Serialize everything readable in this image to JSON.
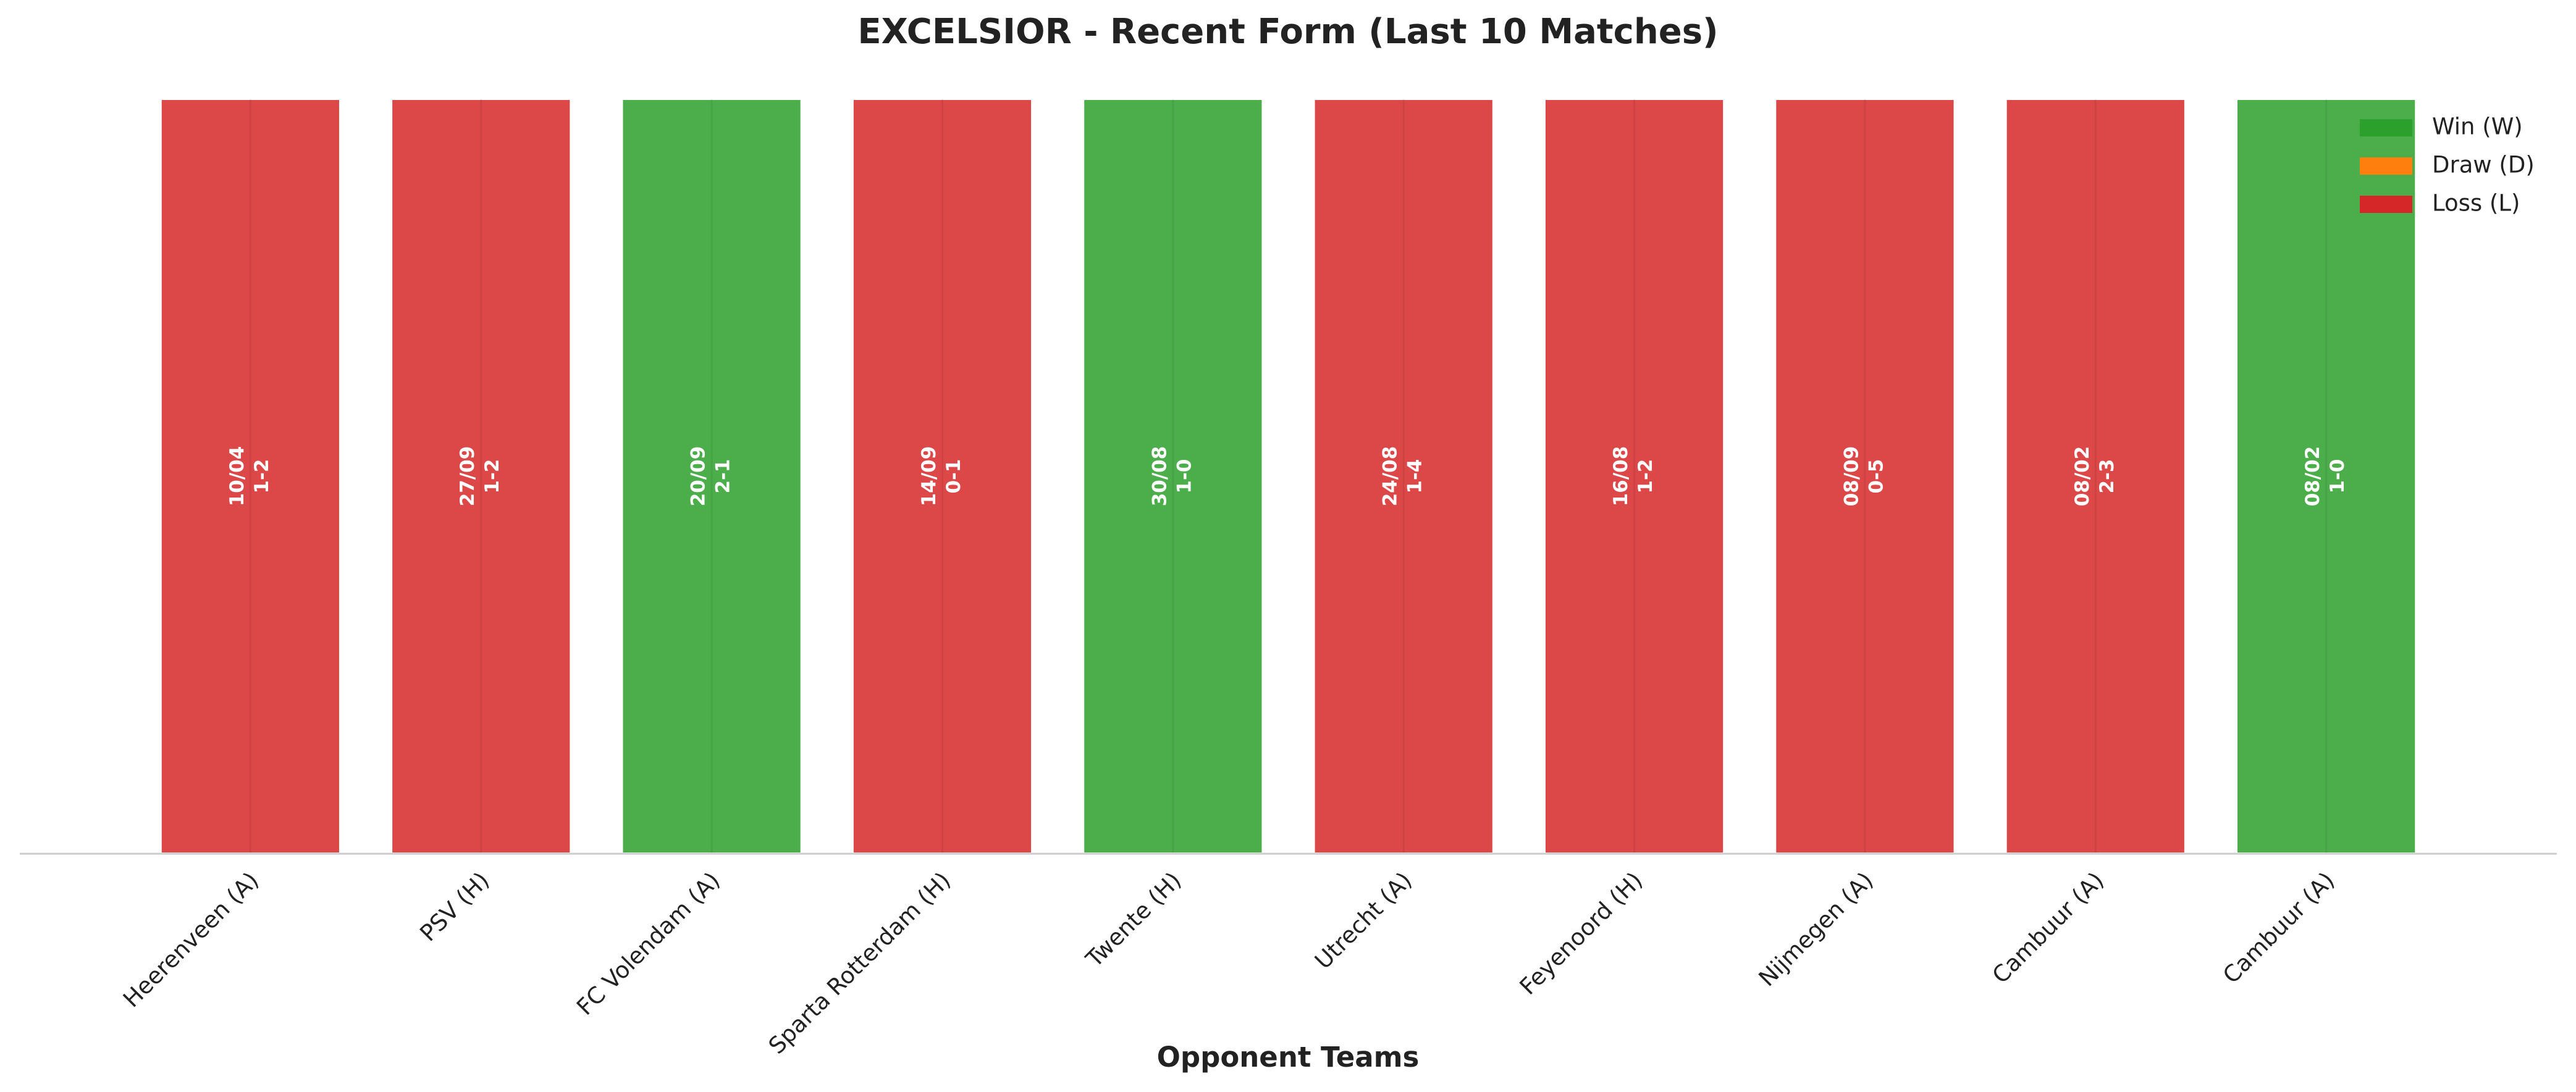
{
  "chart_data": {
    "type": "bar",
    "title": "EXCELSIOR - Recent Form (Last 10 Matches)",
    "xlabel": "Opponent Teams",
    "categories": [
      "Heerenveen (A)",
      "PSV (H)",
      "FC Volendam (A)",
      "Sparta Rotterdam (H)",
      "Twente (H)",
      "Utrecht (A)",
      "Feyenoord (H)",
      "Nijmegen (A)",
      "Cambuur (A)",
      "Cambuur (A)"
    ],
    "values": [
      1,
      1,
      1,
      1,
      1,
      1,
      1,
      1,
      1,
      1
    ],
    "dates": [
      "10/04",
      "27/09",
      "20/09",
      "14/09",
      "30/08",
      "24/08",
      "16/08",
      "08/09",
      "08/02",
      "08/02"
    ],
    "scores": [
      "1-2",
      "1-2",
      "2-1",
      "0-1",
      "1-0",
      "1-4",
      "1-2",
      "0-5",
      "2-3",
      "1-0"
    ],
    "colors": [
      "#d62728",
      "#d62728",
      "#2ca02c",
      "#d62728",
      "#2ca02c",
      "#d62728",
      "#d62728",
      "#d62728",
      "#d62728",
      "#2ca02c"
    ],
    "legend": [
      {
        "name": "Win (W)",
        "color": "#2ca02c"
      },
      {
        "name": "Draw (D)",
        "color": "#ff7f0e"
      },
      {
        "name": "Loss (L)",
        "color": "#d62728"
      }
    ],
    "legend_position": "upper right",
    "ylim": [
      0,
      1
    ],
    "grid": true
  }
}
